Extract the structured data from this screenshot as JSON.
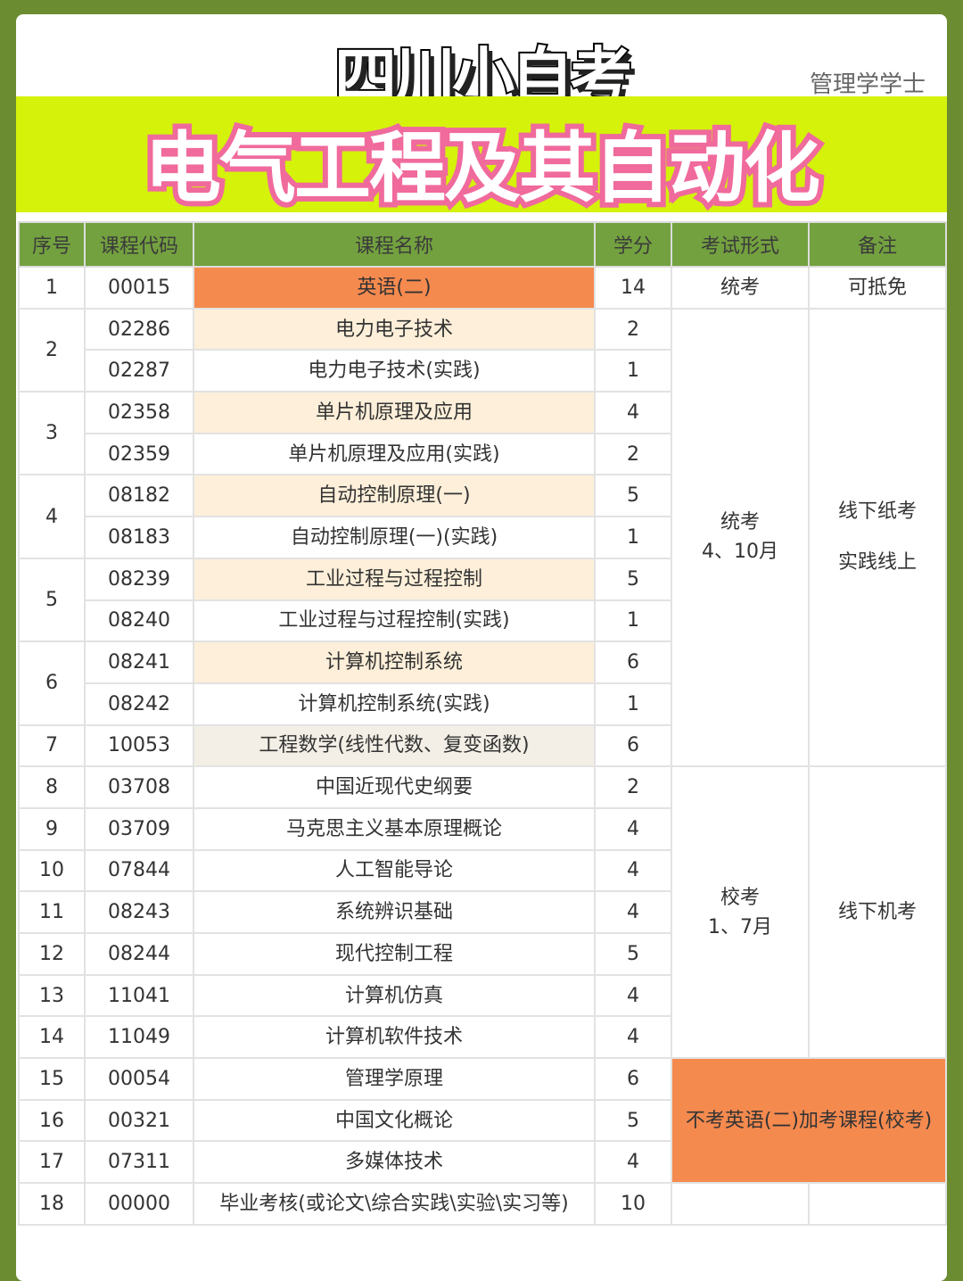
{
  "header": {
    "brand": "四川小自考",
    "degree": "管理学学士",
    "major": "电气工程及其自动化"
  },
  "columns": [
    "序号",
    "课程代码",
    "课程名称",
    "学分",
    "考试形式",
    "备注"
  ],
  "colors": {
    "background": "#6b8c30",
    "banner": "#d4f20a",
    "table_header": "#73a13f",
    "orange": "#f58a4f",
    "beige": "#fdefd9",
    "pink": "#f06a9c"
  },
  "groups": [
    {
      "seq": "1",
      "courses": [
        {
          "code": "00015",
          "name": "英语(二)",
          "credit": "14",
          "hl": "orange"
        }
      ]
    },
    {
      "seq": "2",
      "courses": [
        {
          "code": "02286",
          "name": "电力电子技术",
          "credit": "2",
          "hl": "beige"
        },
        {
          "code": "02287",
          "name": "电力电子技术(实践)",
          "credit": "1",
          "hl": ""
        }
      ]
    },
    {
      "seq": "3",
      "courses": [
        {
          "code": "02358",
          "name": "单片机原理及应用",
          "credit": "4",
          "hl": "beige"
        },
        {
          "code": "02359",
          "name": "单片机原理及应用(实践)",
          "credit": "2",
          "hl": ""
        }
      ]
    },
    {
      "seq": "4",
      "courses": [
        {
          "code": "08182",
          "name": "自动控制原理(一)",
          "credit": "5",
          "hl": "beige"
        },
        {
          "code": "08183",
          "name": "自动控制原理(一)(实践)",
          "credit": "1",
          "hl": ""
        }
      ]
    },
    {
      "seq": "5",
      "courses": [
        {
          "code": "08239",
          "name": "工业过程与过程控制",
          "credit": "5",
          "hl": "beige"
        },
        {
          "code": "08240",
          "name": "工业过程与过程控制(实践)",
          "credit": "1",
          "hl": ""
        }
      ]
    },
    {
      "seq": "6",
      "courses": [
        {
          "code": "08241",
          "name": "计算机控制系统",
          "credit": "6",
          "hl": "beige"
        },
        {
          "code": "08242",
          "name": "计算机控制系统(实践)",
          "credit": "1",
          "hl": ""
        }
      ]
    },
    {
      "seq": "7",
      "courses": [
        {
          "code": "10053",
          "name": "工程数学(线性代数、复变函数)",
          "credit": "6",
          "hl": "gray"
        }
      ]
    },
    {
      "seq": "8",
      "courses": [
        {
          "code": "03708",
          "name": "中国近现代史纲要",
          "credit": "2",
          "hl": ""
        }
      ]
    },
    {
      "seq": "9",
      "courses": [
        {
          "code": "03709",
          "name": "马克思主义基本原理概论",
          "credit": "4",
          "hl": ""
        }
      ]
    },
    {
      "seq": "10",
      "courses": [
        {
          "code": "07844",
          "name": "人工智能导论",
          "credit": "4",
          "hl": ""
        }
      ]
    },
    {
      "seq": "11",
      "courses": [
        {
          "code": "08243",
          "name": "系统辨识基础",
          "credit": "4",
          "hl": ""
        }
      ]
    },
    {
      "seq": "12",
      "courses": [
        {
          "code": "08244",
          "name": "现代控制工程",
          "credit": "5",
          "hl": ""
        }
      ]
    },
    {
      "seq": "13",
      "courses": [
        {
          "code": "11041",
          "name": "计算机仿真",
          "credit": "4",
          "hl": ""
        }
      ]
    },
    {
      "seq": "14",
      "courses": [
        {
          "code": "11049",
          "name": "计算机软件技术",
          "credit": "4",
          "hl": ""
        }
      ]
    },
    {
      "seq": "15",
      "courses": [
        {
          "code": "00054",
          "name": "管理学原理",
          "credit": "6",
          "hl": ""
        }
      ]
    },
    {
      "seq": "16",
      "courses": [
        {
          "code": "00321",
          "name": "中国文化概论",
          "credit": "5",
          "hl": ""
        }
      ]
    },
    {
      "seq": "17",
      "courses": [
        {
          "code": "07311",
          "name": "多媒体技术",
          "credit": "4",
          "hl": ""
        }
      ]
    },
    {
      "seq": "18",
      "courses": [
        {
          "code": "00000",
          "name": "毕业考核(或论文\\综合实践\\实验\\实习等)",
          "credit": "10",
          "hl": ""
        }
      ]
    }
  ],
  "exam_blocks": [
    {
      "rows": 1,
      "exam": [
        "统考"
      ],
      "remark": [
        "可抵免"
      ]
    },
    {
      "rows": 11,
      "exam": [
        "统考",
        "4、10月"
      ],
      "remark": [
        "线下纸考",
        "实践线上"
      ]
    },
    {
      "rows": 7,
      "exam": [
        "校考",
        "1、7月"
      ],
      "remark": [
        "线下机考"
      ]
    },
    {
      "rows": 3,
      "merged": "不考英语(二)加考课程(校考)"
    },
    {
      "rows": 1,
      "exam": [],
      "remark": []
    }
  ]
}
